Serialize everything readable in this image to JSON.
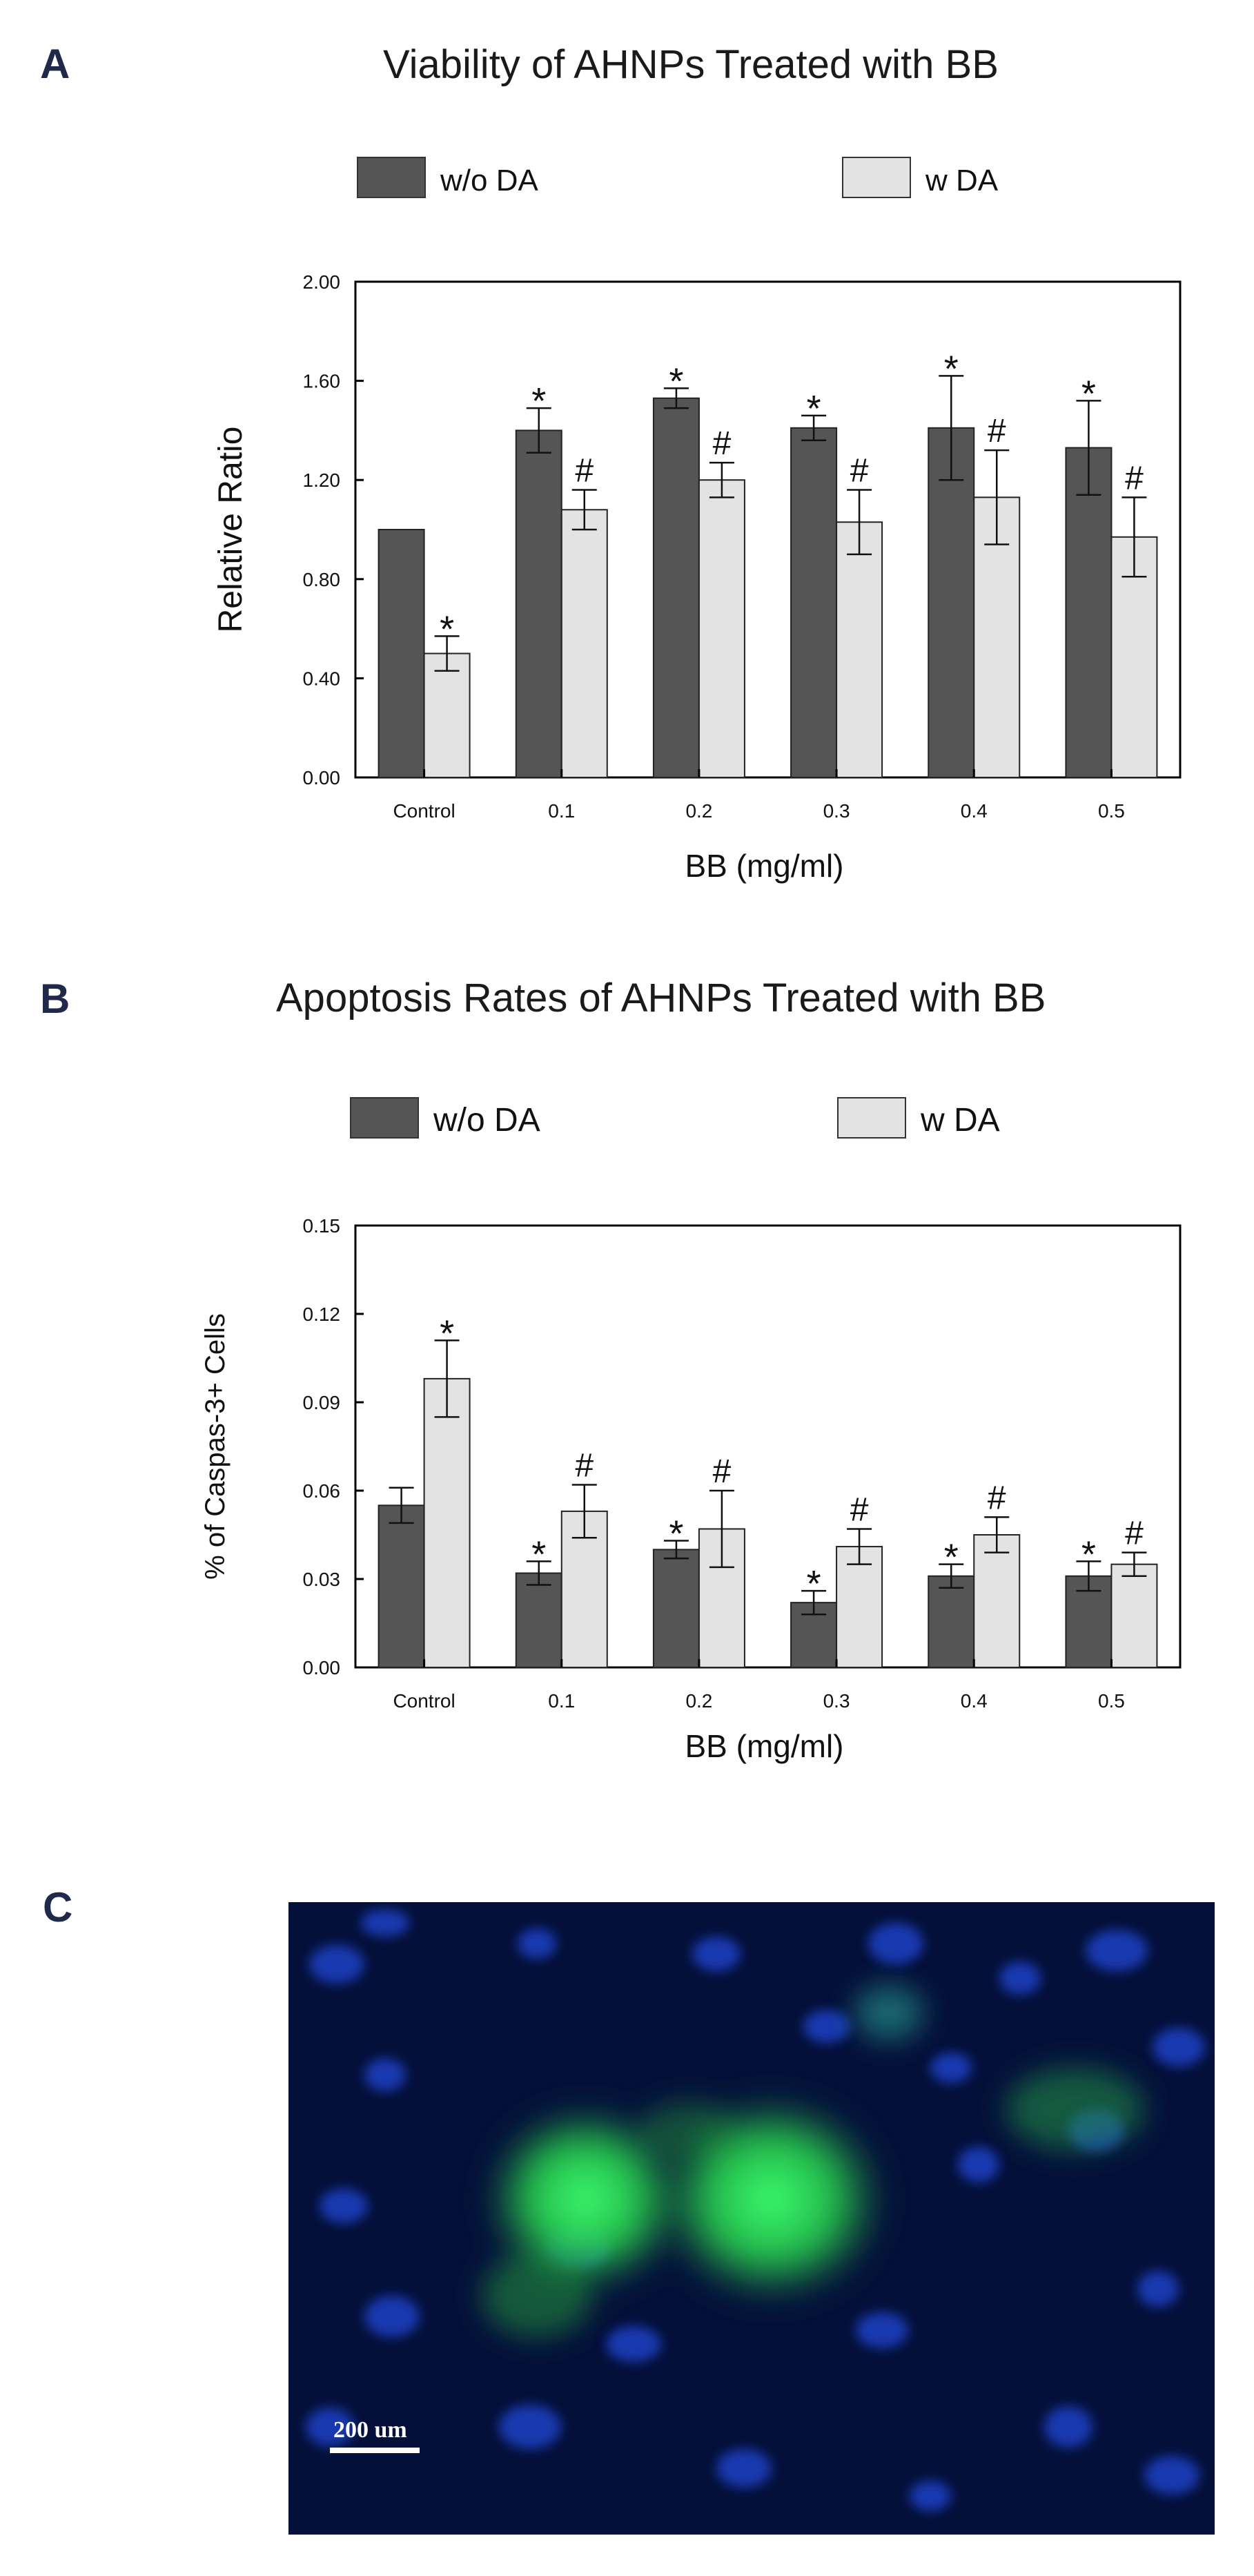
{
  "panels": {
    "a": "A",
    "b": "B",
    "c": "C"
  },
  "colors": {
    "wo_da": "#555555",
    "w_da": "#e3e3e3",
    "axis": "#000000"
  },
  "chart_data": [
    {
      "type": "bar",
      "title": "Viability of AHNPs Treated with BB",
      "xlabel": "BB (mg/ml)",
      "ylabel": "Relative Ratio",
      "categories": [
        "Control",
        "0.1",
        "0.2",
        "0.3",
        "0.4",
        "0.5"
      ],
      "ylim": [
        0,
        2.0
      ],
      "yticks": [
        "0.00",
        "0.40",
        "0.80",
        "1.20",
        "1.60",
        "2.00"
      ],
      "ytick_values": [
        0,
        0.4,
        0.8,
        1.2,
        1.6,
        2.0
      ],
      "legend": "top",
      "grid": false,
      "series": [
        {
          "name": "w/o DA",
          "values": [
            1.0,
            1.4,
            1.53,
            1.41,
            1.41,
            1.33
          ],
          "errors": [
            0,
            0.09,
            0.04,
            0.05,
            0.21,
            0.19
          ],
          "marks": [
            "",
            "*",
            "*",
            "*",
            "*",
            "*"
          ]
        },
        {
          "name": "w DA",
          "values": [
            0.5,
            1.08,
            1.2,
            1.03,
            1.13,
            0.97
          ],
          "errors": [
            0.07,
            0.08,
            0.07,
            0.13,
            0.19,
            0.16
          ],
          "marks": [
            "*",
            "#",
            "#",
            "#",
            "#",
            "#"
          ]
        }
      ]
    },
    {
      "type": "bar",
      "title": "Apoptosis Rates of AHNPs Treated with BB",
      "xlabel": "BB (mg/ml)",
      "ylabel": "% of Caspas-3+ Cells",
      "categories": [
        "Control",
        "0.1",
        "0.2",
        "0.3",
        "0.4",
        "0.5"
      ],
      "ylim": [
        0,
        0.15
      ],
      "yticks": [
        "0.00",
        "0.03",
        "0.06",
        "0.09",
        "0.12",
        "0.15"
      ],
      "ytick_values": [
        0,
        0.03,
        0.06,
        0.09,
        0.12,
        0.15
      ],
      "legend": "top",
      "grid": false,
      "series": [
        {
          "name": "w/o DA",
          "values": [
            0.055,
            0.032,
            0.04,
            0.022,
            0.031,
            0.031
          ],
          "errors": [
            0.006,
            0.004,
            0.003,
            0.004,
            0.004,
            0.005
          ],
          "marks": [
            "",
            "*",
            "*",
            "*",
            "*",
            "*"
          ]
        },
        {
          "name": "w DA",
          "values": [
            0.098,
            0.053,
            0.047,
            0.041,
            0.045,
            0.035
          ],
          "errors": [
            0.013,
            0.009,
            0.013,
            0.006,
            0.006,
            0.004
          ],
          "marks": [
            "*",
            "#",
            "#",
            "#",
            "#",
            "#"
          ]
        }
      ]
    }
  ],
  "micrograph": {
    "scale_bar_label": "200 um"
  }
}
